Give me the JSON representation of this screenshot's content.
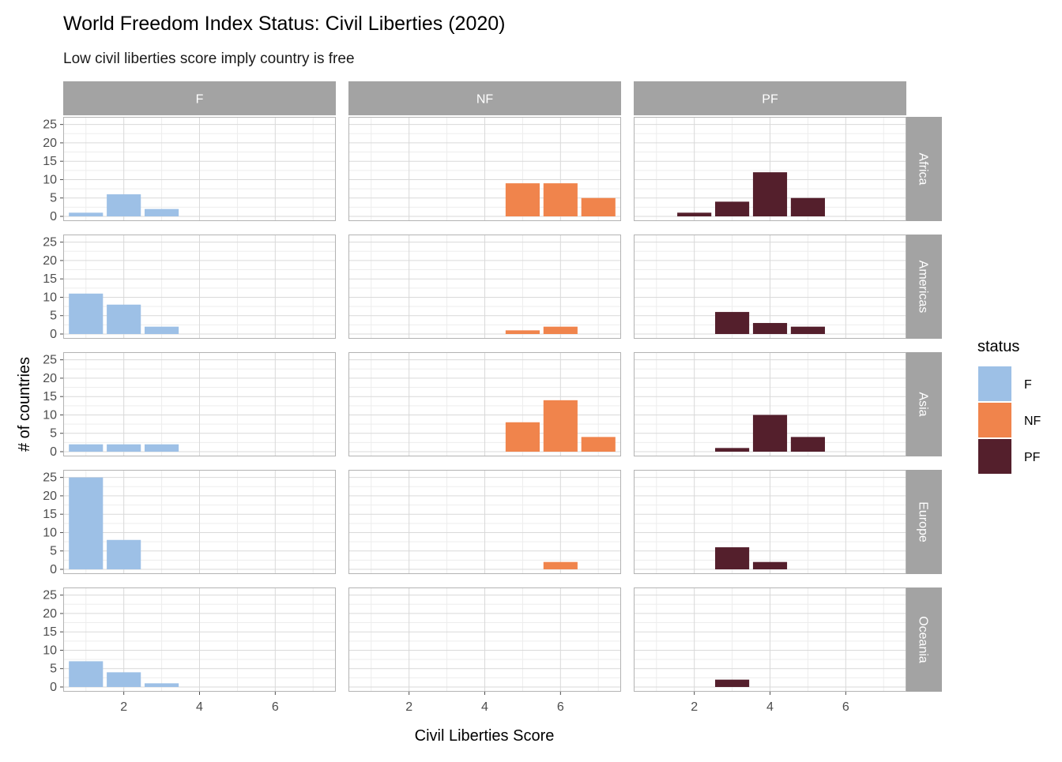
{
  "chart_data": {
    "type": "bar",
    "title": "World Freedom Index Status: Civil Liberties (2020)",
    "subtitle": "Low civil liberties score imply country is free",
    "xlabel": "Civil Liberties Score",
    "ylabel": "# of countries",
    "xlim": [
      0.4,
      7.6
    ],
    "ylim": [
      0,
      26
    ],
    "x_ticks": [
      2,
      4,
      6
    ],
    "y_ticks": [
      0,
      5,
      10,
      15,
      20,
      25
    ],
    "grid": true,
    "legend_position": "right",
    "legend_title": "status",
    "facet_columns": [
      "F",
      "NF",
      "PF"
    ],
    "facet_rows": [
      "Africa",
      "Americas",
      "Asia",
      "Europe",
      "Oceania"
    ],
    "series": [
      {
        "name": "F",
        "color": "#9dc0e6"
      },
      {
        "name": "NF",
        "color": "#f0844c"
      },
      {
        "name": "PF",
        "color": "#541f2c"
      }
    ],
    "panels": [
      {
        "row": "Africa",
        "col": "F",
        "x": [
          1,
          2,
          3
        ],
        "values": [
          1,
          6,
          2
        ]
      },
      {
        "row": "Africa",
        "col": "NF",
        "x": [
          5,
          6,
          7
        ],
        "values": [
          9,
          9,
          5
        ]
      },
      {
        "row": "Africa",
        "col": "PF",
        "x": [
          2,
          3,
          4,
          5
        ],
        "values": [
          1,
          4,
          12,
          5
        ]
      },
      {
        "row": "Americas",
        "col": "F",
        "x": [
          1,
          2,
          3
        ],
        "values": [
          11,
          8,
          2
        ]
      },
      {
        "row": "Americas",
        "col": "NF",
        "x": [
          5,
          6
        ],
        "values": [
          1,
          2
        ]
      },
      {
        "row": "Americas",
        "col": "PF",
        "x": [
          3,
          4,
          5
        ],
        "values": [
          6,
          3,
          2
        ]
      },
      {
        "row": "Asia",
        "col": "F",
        "x": [
          1,
          2,
          3
        ],
        "values": [
          2,
          2,
          2
        ]
      },
      {
        "row": "Asia",
        "col": "NF",
        "x": [
          5,
          6,
          7
        ],
        "values": [
          8,
          14,
          4
        ]
      },
      {
        "row": "Asia",
        "col": "PF",
        "x": [
          3,
          4,
          5
        ],
        "values": [
          1,
          10,
          4
        ]
      },
      {
        "row": "Europe",
        "col": "F",
        "x": [
          1,
          2
        ],
        "values": [
          25,
          8
        ]
      },
      {
        "row": "Europe",
        "col": "NF",
        "x": [
          6
        ],
        "values": [
          2
        ]
      },
      {
        "row": "Europe",
        "col": "PF",
        "x": [
          3,
          4
        ],
        "values": [
          6,
          2
        ]
      },
      {
        "row": "Oceania",
        "col": "F",
        "x": [
          1,
          2,
          3
        ],
        "values": [
          7,
          4,
          1
        ]
      },
      {
        "row": "Oceania",
        "col": "NF",
        "x": [],
        "values": []
      },
      {
        "row": "Oceania",
        "col": "PF",
        "x": [
          3
        ],
        "values": [
          2
        ]
      }
    ]
  }
}
